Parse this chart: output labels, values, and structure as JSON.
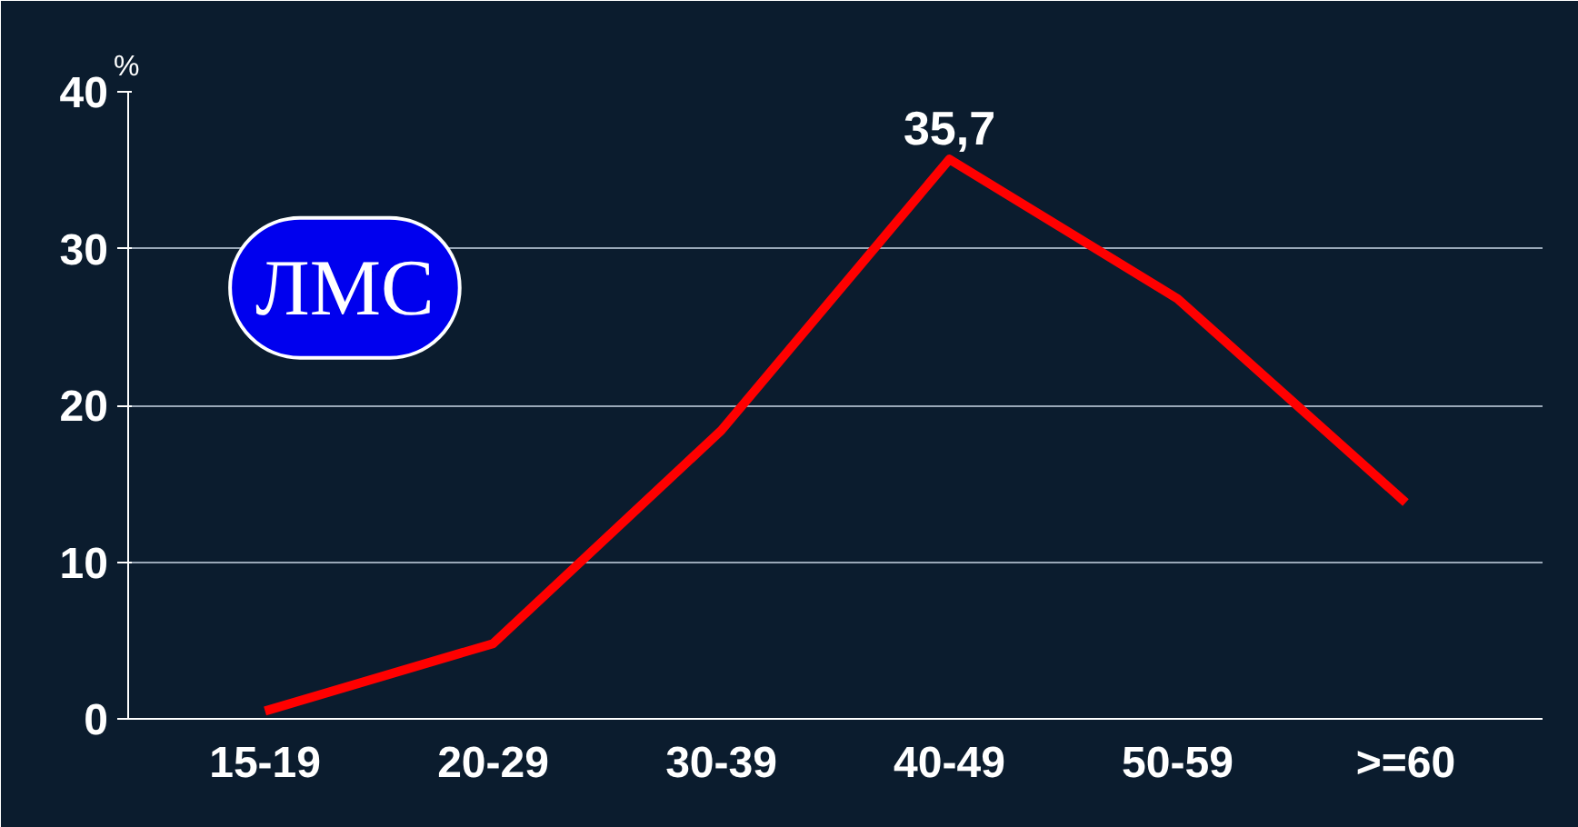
{
  "chart_data": {
    "type": "line",
    "ylabel": "%",
    "categories": [
      "15-19",
      "20-29",
      "30-39",
      "40-49",
      "50-59",
      ">=60"
    ],
    "series": [
      {
        "color": "#ff0000",
        "values": [
          0.5,
          4.8,
          18.4,
          35.7,
          26.8,
          13.8
        ],
        "value_labels": [
          null,
          null,
          null,
          "35,7",
          null,
          null
        ]
      }
    ],
    "ylim": [
      0,
      40
    ],
    "yticks": [
      0,
      10,
      20,
      30,
      40
    ],
    "grid": "y",
    "marker": "none",
    "line_style": "solid",
    "annotations": [
      "ЛМС"
    ]
  }
}
